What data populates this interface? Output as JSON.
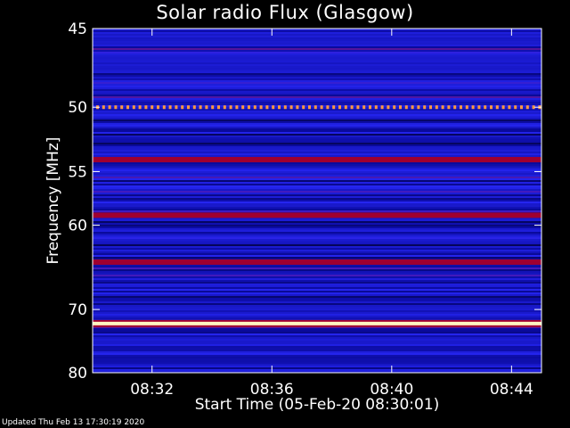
{
  "chart_data": {
    "type": "heatmap",
    "title": "Solar radio Flux (Glasgow)",
    "xlabel": "Start Time (05-Feb-20 08:30:01)",
    "ylabel": "Frequency [MHz]",
    "xticks": [
      "08:32",
      "08:36",
      "08:40",
      "08:44"
    ],
    "yticks": [
      "45",
      "50",
      "55",
      "60",
      "70",
      "80"
    ],
    "x_range": [
      "08:30:01",
      "08:45:00"
    ],
    "ylim": [
      45,
      80
    ],
    "colors": {
      "background": "#000000",
      "low": "#0a0a9a",
      "mid": "#2a2aff",
      "high": "#a00030",
      "peak": "#fff4c0"
    },
    "bright_bands_mhz": [
      50,
      54,
      59,
      64,
      72
    ]
  },
  "footer": "Updated Thu Feb 13 17:30:19 2020"
}
